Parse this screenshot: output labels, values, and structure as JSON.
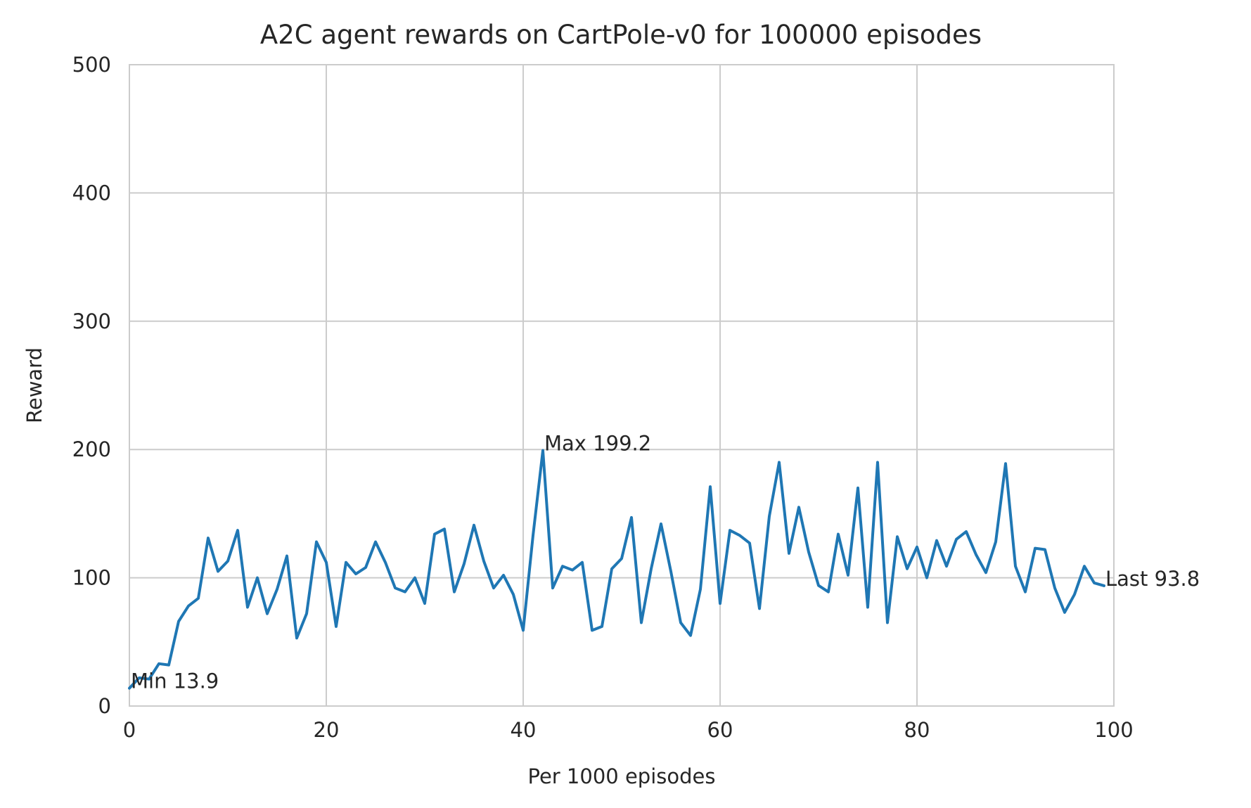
{
  "chart_data": {
    "type": "line",
    "title": "A2C agent rewards on CartPole-v0 for 100000 episodes",
    "xlabel": "Per 1000 episodes",
    "ylabel": "Reward",
    "xlim": [
      0,
      100
    ],
    "ylim": [
      0,
      500
    ],
    "xticks": [
      0,
      20,
      40,
      60,
      80,
      100
    ],
    "yticks": [
      0,
      100,
      200,
      300,
      400,
      500
    ],
    "grid": true,
    "colors": {
      "line": "#1f77b4",
      "grid": "#cccccc",
      "text": "#262626"
    },
    "series": [
      {
        "x": [
          0,
          1,
          2,
          3,
          4,
          5,
          6,
          7,
          8,
          9,
          10,
          11,
          12,
          13,
          14,
          15,
          16,
          17,
          18,
          19,
          20,
          21,
          22,
          23,
          24,
          25,
          26,
          27,
          28,
          29,
          30,
          31,
          32,
          33,
          34,
          35,
          36,
          37,
          38,
          39,
          40,
          41,
          42,
          43,
          44,
          45,
          46,
          47,
          48,
          49,
          50,
          51,
          52,
          53,
          54,
          55,
          56,
          57,
          58,
          59,
          60,
          61,
          62,
          63,
          64,
          65,
          66,
          67,
          68,
          69,
          70,
          71,
          72,
          73,
          74,
          75,
          76,
          77,
          78,
          79,
          80,
          81,
          82,
          83,
          84,
          85,
          86,
          87,
          88,
          89,
          90,
          91,
          92,
          93,
          94,
          95,
          96,
          97,
          98,
          99
        ],
        "values": [
          13.9,
          22,
          21,
          33,
          32,
          66,
          78,
          84,
          131,
          105,
          113,
          137,
          77,
          100,
          72,
          91,
          117,
          53,
          72,
          128,
          112,
          62,
          112,
          103,
          108,
          128,
          112,
          92,
          89,
          100,
          80,
          134,
          138,
          89,
          111,
          141,
          113,
          92,
          102,
          87,
          59,
          133,
          199.2,
          92,
          109,
          106,
          112,
          59,
          62,
          107,
          115,
          147,
          65,
          107,
          142,
          105,
          65,
          55,
          91,
          171,
          80,
          137,
          133,
          127,
          76,
          148,
          190,
          119,
          155,
          120,
          94,
          89,
          134,
          102,
          170,
          77,
          190,
          65,
          132,
          107,
          124,
          100,
          129,
          109,
          130,
          136,
          118,
          104,
          128,
          189,
          109,
          89,
          123,
          122,
          92,
          73,
          87,
          109,
          96,
          93.8
        ]
      }
    ],
    "annotations": [
      {
        "text": "Min 13.9",
        "x": 0,
        "y": 13.9
      },
      {
        "text": "Max 199.2",
        "x": 42,
        "y": 199.2
      },
      {
        "text": "Last 93.8",
        "x": 99,
        "y": 93.8
      }
    ]
  }
}
